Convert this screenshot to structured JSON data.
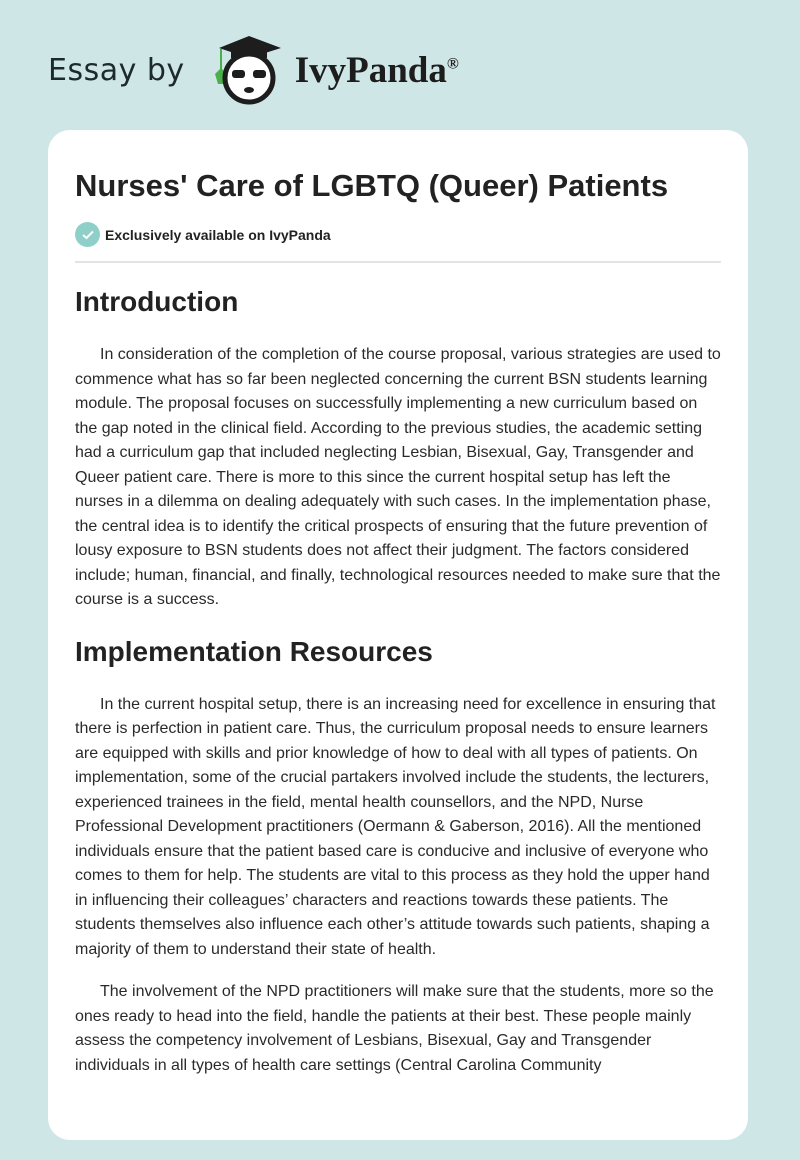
{
  "header": {
    "essay_by": "Essay by",
    "brand": "IvyPanda",
    "registered": "®"
  },
  "article": {
    "title": "Nurses' Care of LGBTQ (Queer) Patients",
    "badge": "Exclusively available on IvyPanda",
    "sections": [
      {
        "heading": "Introduction",
        "paragraphs": [
          "In consideration of the completion of the course proposal, various strategies are used to commence what has so far been neglected concerning the current BSN students learning module. The proposal focuses on successfully implementing a new curriculum based on the gap noted in the clinical field. According to the previous studies, the academic setting had a curriculum gap that included neglecting Lesbian, Bisexual, Gay, Transgender and Queer patient care. There is more to this since the current hospital setup has left the nurses in a dilemma on dealing adequately with such cases. In the implementation phase, the central idea is to identify the critical prospects of ensuring that the future prevention of lousy exposure to BSN students does not affect their judgment. The factors considered include; human, financial, and finally, technological resources needed to make sure that the course is a success."
        ]
      },
      {
        "heading": "Implementation Resources",
        "paragraphs": [
          "In the current hospital setup, there is an increasing need for excellence in ensuring that there is perfection in patient care. Thus, the curriculum proposal needs to ensure learners are equipped with skills and prior knowledge of how to deal with all types of patients. On implementation, some of the crucial partakers involved include the students, the lecturers, experienced trainees in the field, mental health counsellors, and the NPD, Nurse Professional Development practitioners (Oermann & Gaberson, 2016). All the mentioned individuals ensure that the patient based care is conducive and inclusive of everyone who comes to them for help. The students are vital to this process as they hold the upper hand in influencing their colleagues’ characters and reactions towards these patients. The students themselves also influence each other’s attitude towards such patients, shaping a majority of them to understand their state of health.",
          "The involvement of the NPD practitioners will make sure that the students, more so the ones ready to head into the field, handle the patients at their best. These people mainly assess the competency involvement of Lesbians, Bisexual, Gay and Transgender individuals in all types of health care settings (Central Carolina Community"
        ]
      }
    ]
  },
  "colors": {
    "background": "#cfe6e7",
    "badge_check": "#8ed0c9",
    "ivy_green": "#4cb04a"
  }
}
